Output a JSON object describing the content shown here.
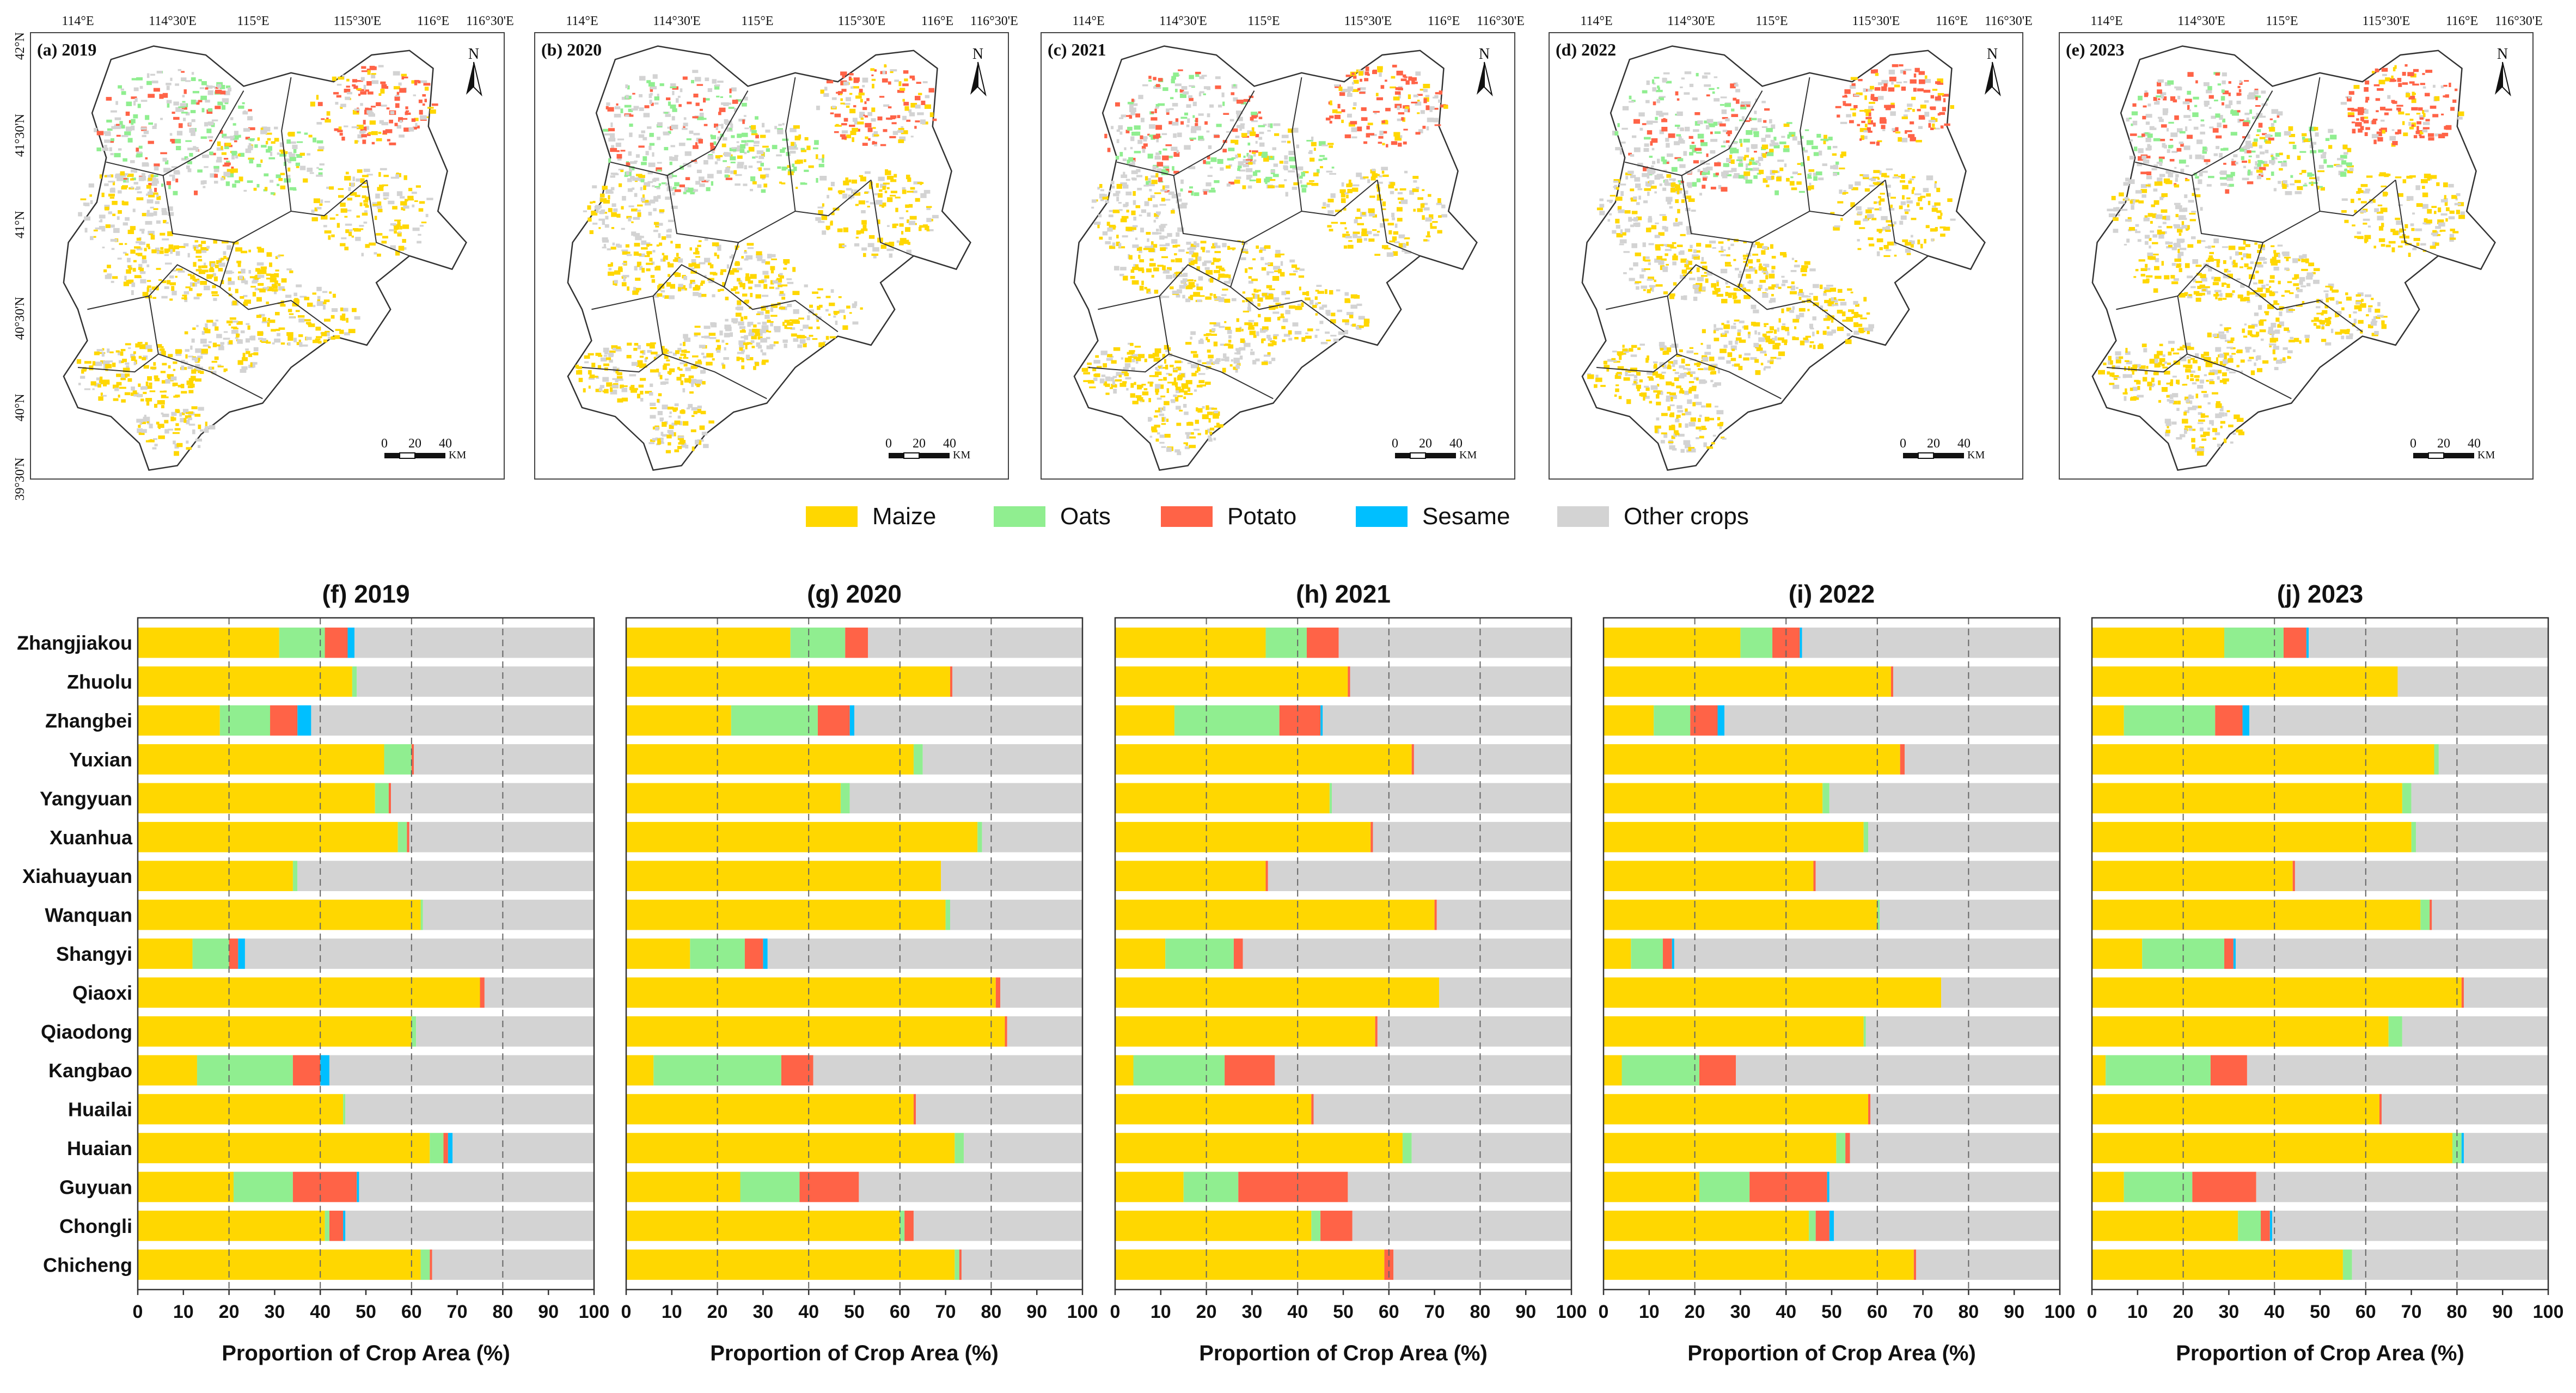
{
  "maps": {
    "lon_ticks": [
      "114°E",
      "114°30'E",
      "115°E",
      "115°30'E",
      "116°E",
      "116°30'E"
    ],
    "lat_ticks": [
      "42°N",
      "41°30'N",
      "41°N",
      "40°30'N",
      "40°N",
      "39°30'N"
    ],
    "north_label": "N",
    "scale_labels": [
      "0",
      "20",
      "40"
    ],
    "scale_unit": "KM",
    "panels": [
      {
        "label": "(a) 2019",
        "year": 2019
      },
      {
        "label": "(b) 2020",
        "year": 2020
      },
      {
        "label": "(c) 2021",
        "year": 2021
      },
      {
        "label": "(d) 2022",
        "year": 2022
      },
      {
        "label": "(e) 2023",
        "year": 2023
      }
    ]
  },
  "legend": [
    {
      "label": "Maize",
      "color": "#FFD700"
    },
    {
      "label": "Oats",
      "color": "#90EE90"
    },
    {
      "label": "Potato",
      "color": "#FF6347"
    },
    {
      "label": "Sesame",
      "color": "#00BFFF"
    },
    {
      "label": "Other crops",
      "color": "#D3D3D3"
    }
  ],
  "chart_data": [
    {
      "type": "bar",
      "orientation": "horizontal",
      "stacked": true,
      "title": "(f) 2019",
      "xlabel": "Proportion of Crop Area (%)",
      "xlim": [
        0,
        100
      ],
      "xticks": [
        "0",
        "10",
        "20",
        "30",
        "40",
        "50",
        "60",
        "70",
        "80",
        "90",
        "100"
      ],
      "categories": [
        "Zhangjiakou",
        "Zhuolu",
        "Zhangbei",
        "Yuxian",
        "Yangyuan",
        "Xuanhua",
        "Xiahuayuan",
        "Wanquan",
        "Shangyi",
        "Qiaoxi",
        "Qiaodong",
        "Kangbao",
        "Huailai",
        "Huaian",
        "Guyuan",
        "Chongli",
        "Chicheng"
      ],
      "series": [
        {
          "name": "Maize",
          "values": [
            31,
            47,
            18,
            54,
            52,
            57,
            34,
            62,
            12,
            75,
            60,
            13,
            45,
            64,
            21,
            41,
            62
          ]
        },
        {
          "name": "Oats",
          "values": [
            10,
            1,
            11,
            6,
            3,
            2,
            1,
            0.5,
            8,
            0,
            1,
            21,
            0.5,
            3,
            13,
            1,
            2
          ]
        },
        {
          "name": "Potato",
          "values": [
            5,
            0,
            6,
            0.5,
            0.5,
            0.5,
            0,
            0,
            2,
            1,
            0,
            6,
            0,
            1,
            14,
            3,
            0.5
          ]
        },
        {
          "name": "Sesame",
          "values": [
            1.5,
            0,
            3,
            0,
            0,
            0,
            0,
            0,
            1.5,
            0,
            0,
            2,
            0,
            1,
            0.5,
            0.5,
            0
          ]
        },
        {
          "name": "Other crops",
          "values": [
            52.5,
            52,
            62,
            39.5,
            44.5,
            40.5,
            65,
            37.5,
            76.5,
            24,
            39,
            58,
            54.5,
            31,
            51.5,
            54.5,
            35.5
          ]
        }
      ]
    },
    {
      "type": "bar",
      "orientation": "horizontal",
      "stacked": true,
      "title": "(g) 2020",
      "xlabel": "Proportion of Crop Area (%)",
      "xlim": [
        0,
        100
      ],
      "xticks": [
        "0",
        "10",
        "20",
        "30",
        "40",
        "50",
        "60",
        "70",
        "80",
        "90",
        "100"
      ],
      "categories": [
        "Zhangjiakou",
        "Zhuolu",
        "Zhangbei",
        "Yuxian",
        "Yangyuan",
        "Xuanhua",
        "Xiahuayuan",
        "Wanquan",
        "Shangyi",
        "Qiaoxi",
        "Qiaodong",
        "Kangbao",
        "Huailai",
        "Huaian",
        "Guyuan",
        "Chongli",
        "Chicheng"
      ],
      "series": [
        {
          "name": "Maize",
          "values": [
            36,
            71,
            23,
            63,
            47,
            77,
            69,
            70,
            14,
            81,
            83,
            6,
            63,
            72,
            25,
            60,
            72
          ]
        },
        {
          "name": "Oats",
          "values": [
            12,
            0,
            19,
            2,
            2,
            1,
            0,
            1,
            12,
            0,
            0,
            28,
            0,
            2,
            13,
            1,
            1
          ]
        },
        {
          "name": "Potato",
          "values": [
            5,
            0.5,
            7,
            0,
            0,
            0,
            0,
            0,
            4,
            1,
            0.5,
            7,
            0.5,
            0,
            13,
            2,
            0.5
          ]
        },
        {
          "name": "Sesame",
          "values": [
            0,
            0,
            1,
            0,
            0,
            0,
            0,
            0,
            1,
            0,
            0,
            0,
            0,
            0,
            0,
            0,
            0
          ]
        },
        {
          "name": "Other crops",
          "values": [
            47,
            28.5,
            50,
            35,
            51,
            22,
            31,
            29,
            69,
            18,
            16.5,
            59,
            36.5,
            26,
            49,
            37,
            26.5
          ]
        }
      ]
    },
    {
      "type": "bar",
      "orientation": "horizontal",
      "stacked": true,
      "title": "(h) 2021",
      "xlabel": "Proportion of Crop Area (%)",
      "xlim": [
        0,
        100
      ],
      "xticks": [
        "0",
        "10",
        "20",
        "30",
        "40",
        "50",
        "60",
        "70",
        "80",
        "90",
        "100"
      ],
      "categories": [
        "Zhangjiakou",
        "Zhuolu",
        "Zhangbei",
        "Yuxian",
        "Yangyuan",
        "Xuanhua",
        "Xiahuayuan",
        "Wanquan",
        "Shangyi",
        "Qiaoxi",
        "Qiaodong",
        "Kangbao",
        "Huailai",
        "Huaian",
        "Guyuan",
        "Chongli",
        "Chicheng"
      ],
      "series": [
        {
          "name": "Maize",
          "values": [
            33,
            51,
            13,
            65,
            47,
            56,
            33,
            70,
            11,
            71,
            57,
            4,
            43,
            63,
            15,
            43,
            59
          ]
        },
        {
          "name": "Oats",
          "values": [
            9,
            0,
            23,
            0,
            0.5,
            0,
            0,
            0,
            15,
            0,
            0,
            20,
            0,
            2,
            12,
            2,
            0
          ]
        },
        {
          "name": "Potato",
          "values": [
            7,
            0.5,
            9,
            0.5,
            0,
            0.5,
            0.5,
            0.5,
            2,
            0,
            0.5,
            11,
            0.5,
            0,
            24,
            7,
            2
          ]
        },
        {
          "name": "Sesame",
          "values": [
            0,
            0,
            0.5,
            0,
            0,
            0,
            0,
            0,
            0,
            0,
            0,
            0,
            0,
            0,
            0,
            0,
            0
          ]
        },
        {
          "name": "Other crops",
          "values": [
            51,
            48.5,
            54.5,
            34.5,
            52.5,
            43.5,
            66.5,
            29.5,
            72,
            29,
            42.5,
            65,
            56.5,
            35,
            49,
            48,
            39
          ]
        }
      ]
    },
    {
      "type": "bar",
      "orientation": "horizontal",
      "stacked": true,
      "title": "(i) 2022",
      "xlabel": "Proportion of Crop Area (%)",
      "xlim": [
        0,
        100
      ],
      "xticks": [
        "0",
        "10",
        "20",
        "30",
        "40",
        "50",
        "60",
        "70",
        "80",
        "90",
        "100"
      ],
      "categories": [
        "Zhangjiakou",
        "Zhuolu",
        "Zhangbei",
        "Yuxian",
        "Yangyuan",
        "Xuanhua",
        "Xiahuayuan",
        "Wanquan",
        "Shangyi",
        "Qiaoxi",
        "Qiaodong",
        "Kangbao",
        "Huailai",
        "Huaian",
        "Guyuan",
        "Chongli",
        "Chicheng"
      ],
      "series": [
        {
          "name": "Maize",
          "values": [
            30,
            63,
            11,
            65,
            48,
            57,
            46,
            60,
            6,
            74,
            57,
            4,
            58,
            51,
            21,
            45,
            68
          ]
        },
        {
          "name": "Oats",
          "values": [
            7,
            0,
            8,
            0,
            1.5,
            1,
            0,
            0.5,
            7,
            0,
            0.5,
            17,
            0,
            2,
            11,
            1.5,
            0
          ]
        },
        {
          "name": "Potato",
          "values": [
            6,
            0.5,
            6,
            1,
            0,
            0,
            0.5,
            0,
            2,
            0,
            0,
            8,
            0.5,
            1,
            17,
            3,
            0.5
          ]
        },
        {
          "name": "Sesame",
          "values": [
            0.5,
            0,
            1.5,
            0,
            0,
            0,
            0,
            0,
            0.5,
            0,
            0,
            0,
            0,
            0,
            0.5,
            1,
            0
          ]
        },
        {
          "name": "Other crops",
          "values": [
            56.5,
            36.5,
            73.5,
            34,
            50.5,
            42,
            53.5,
            39.5,
            84.5,
            26,
            42.5,
            71,
            41.5,
            46,
            50.5,
            49.5,
            31.5
          ]
        }
      ]
    },
    {
      "type": "bar",
      "orientation": "horizontal",
      "stacked": true,
      "title": "(j) 2023",
      "xlabel": "Proportion of Crop Area (%)",
      "xlim": [
        0,
        100
      ],
      "xticks": [
        "0",
        "10",
        "20",
        "30",
        "40",
        "50",
        "60",
        "70",
        "80",
        "90",
        "100"
      ],
      "categories": [
        "Zhangjiakou",
        "Zhuolu",
        "Zhangbei",
        "Yuxian",
        "Yangyuan",
        "Xuanhua",
        "Xiahuayuan",
        "Wanquan",
        "Shangyi",
        "Qiaoxi",
        "Qiaodong",
        "Kangbao",
        "Huailai",
        "Huaian",
        "Guyuan",
        "Chongli",
        "Chicheng"
      ],
      "series": [
        {
          "name": "Maize",
          "values": [
            29,
            67,
            7,
            75,
            68,
            70,
            44,
            72,
            11,
            81,
            65,
            3,
            63,
            79,
            7,
            32,
            55
          ]
        },
        {
          "name": "Oats",
          "values": [
            13,
            0,
            20,
            1,
            2,
            1,
            0,
            2,
            18,
            0,
            3,
            23,
            0,
            2,
            15,
            5,
            2
          ]
        },
        {
          "name": "Potato",
          "values": [
            5,
            0,
            6,
            0,
            0,
            0,
            0.5,
            0.5,
            2,
            0.5,
            0,
            8,
            0.5,
            0,
            14,
            2,
            0
          ]
        },
        {
          "name": "Sesame",
          "values": [
            0.5,
            0,
            1.5,
            0,
            0,
            0,
            0,
            0,
            0.5,
            0,
            0,
            0,
            0,
            0.5,
            0,
            0.5,
            0
          ]
        },
        {
          "name": "Other crops",
          "values": [
            52.5,
            33,
            65.5,
            24,
            30,
            29,
            55.5,
            25.5,
            68.5,
            18.5,
            32,
            66,
            36.5,
            18.5,
            64,
            60.5,
            43
          ]
        }
      ]
    }
  ]
}
